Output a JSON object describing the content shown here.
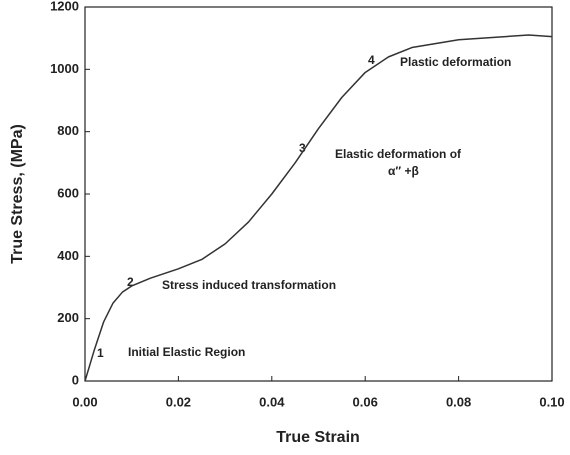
{
  "chart_data": {
    "type": "line",
    "xlabel": "True Strain",
    "ylabel": "True Stress, (MPa)",
    "x": [
      0,
      0.001,
      0.002,
      0.004,
      0.006,
      0.008,
      0.01,
      0.014,
      0.02,
      0.025,
      0.03,
      0.035,
      0.04,
      0.045,
      0.05,
      0.055,
      0.06,
      0.065,
      0.07,
      0.08,
      0.09,
      0.095,
      0.1
    ],
    "y": [
      0,
      50,
      100,
      190,
      250,
      285,
      305,
      330,
      360,
      390,
      440,
      510,
      600,
      700,
      810,
      910,
      990,
      1040,
      1070,
      1095,
      1105,
      1110,
      1105
    ],
    "color": "#333333",
    "xlim": [
      0,
      0.1
    ],
    "ylim": [
      0,
      1200
    ],
    "xticks": [
      {
        "value": 0,
        "label": "0.00"
      },
      0.02,
      0.04,
      0.06,
      0.08,
      {
        "value": 0.1,
        "label": "0.10"
      }
    ],
    "yticks": [
      0,
      200,
      400,
      600,
      800,
      1000,
      1200
    ],
    "annotations": [
      "1",
      "Initial Elastic Region",
      "2",
      "Stress induced transformation",
      "3",
      "Elastic  deformation of",
      "α″ +β",
      "4",
      "Plastic  deformation"
    ]
  }
}
